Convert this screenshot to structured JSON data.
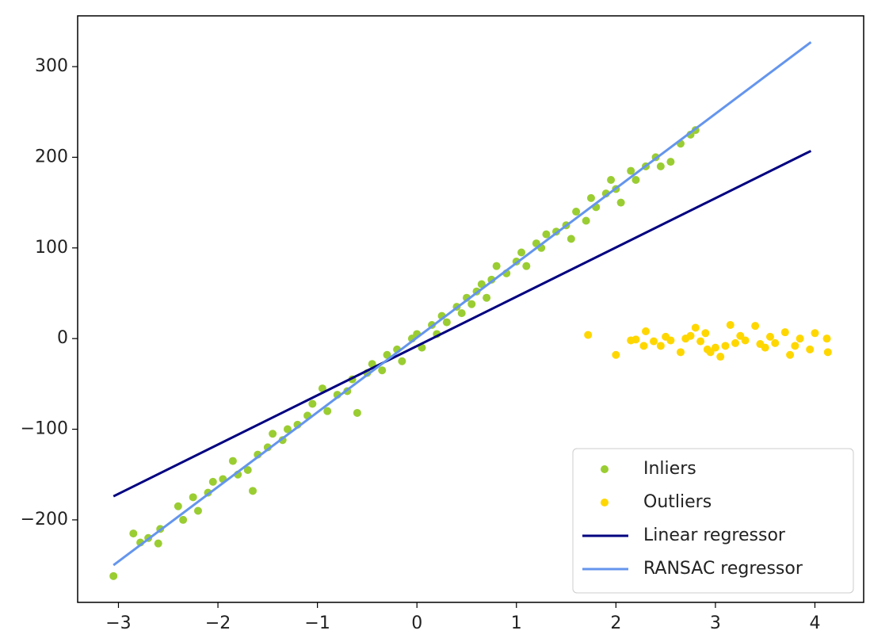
{
  "chart_data": {
    "type": "scatter",
    "xlim": [
      -3.41,
      4.49
    ],
    "ylim": [
      -291,
      356
    ],
    "xticks": [
      {
        "value": -3,
        "label": "−3"
      },
      {
        "value": -2,
        "label": "−2"
      },
      {
        "value": -1,
        "label": "−1"
      },
      0,
      1,
      2,
      3,
      4
    ],
    "yticks": [
      {
        "value": -200,
        "label": "−200"
      },
      {
        "value": -100,
        "label": "−100"
      },
      0,
      100,
      200,
      300
    ],
    "legend": "lower right",
    "series": [
      {
        "name": "Inliers",
        "type": "scatter",
        "color": "#9acd32",
        "x": [
          -3.05,
          -2.85,
          -2.78,
          -2.7,
          -2.6,
          -2.58,
          -2.4,
          -2.35,
          -2.25,
          -2.2,
          -2.1,
          -2.05,
          -1.95,
          -1.85,
          -1.8,
          -1.7,
          -1.65,
          -1.6,
          -1.5,
          -1.45,
          -1.35,
          -1.3,
          -1.2,
          -1.1,
          -1.05,
          -0.95,
          -0.9,
          -0.8,
          -0.7,
          -0.65,
          -0.6,
          -0.5,
          -0.45,
          -0.35,
          -0.3,
          -0.2,
          -0.15,
          -0.05,
          0.0,
          0.05,
          0.15,
          0.2,
          0.25,
          0.3,
          0.4,
          0.45,
          0.5,
          0.55,
          0.6,
          0.65,
          0.7,
          0.75,
          0.8,
          0.9,
          1.0,
          1.05,
          1.1,
          1.2,
          1.25,
          1.3,
          1.4,
          1.5,
          1.55,
          1.6,
          1.7,
          1.75,
          1.8,
          1.9,
          1.95,
          2.0,
          2.05,
          2.15,
          2.2,
          2.3,
          2.4,
          2.45,
          2.55,
          2.65,
          2.75,
          2.8
        ],
        "values": [
          -262,
          -215,
          -225,
          -220,
          -226,
          -210,
          -185,
          -200,
          -175,
          -190,
          -170,
          -158,
          -155,
          -135,
          -150,
          -145,
          -168,
          -128,
          -120,
          -105,
          -112,
          -100,
          -95,
          -85,
          -72,
          -55,
          -80,
          -62,
          -58,
          -45,
          -82,
          -38,
          -28,
          -35,
          -18,
          -12,
          -25,
          0,
          5,
          -10,
          15,
          5,
          25,
          18,
          35,
          28,
          45,
          38,
          52,
          60,
          45,
          65,
          80,
          72,
          85,
          95,
          80,
          105,
          100,
          115,
          118,
          125,
          110,
          140,
          130,
          155,
          145,
          160,
          175,
          165,
          150,
          185,
          175,
          190,
          200,
          190,
          195,
          215,
          225,
          230
        ]
      },
      {
        "name": "Outliers",
        "type": "scatter",
        "color": "#ffd700",
        "x": [
          1.72,
          2.0,
          2.15,
          2.2,
          2.28,
          2.3,
          2.38,
          2.45,
          2.5,
          2.55,
          2.65,
          2.7,
          2.75,
          2.8,
          2.85,
          2.9,
          2.92,
          2.95,
          3.0,
          3.05,
          3.1,
          3.15,
          3.2,
          3.25,
          3.3,
          3.4,
          3.45,
          3.5,
          3.55,
          3.6,
          3.7,
          3.75,
          3.8,
          3.85,
          3.95,
          4.0,
          4.12,
          4.13
        ],
        "values": [
          4,
          -18,
          -2,
          -1,
          -8,
          8,
          -3,
          -8,
          2,
          -2,
          -15,
          0,
          3,
          12,
          -3,
          6,
          -12,
          -15,
          -10,
          -20,
          -8,
          15,
          -5,
          3,
          -2,
          14,
          -6,
          -10,
          2,
          -5,
          7,
          -18,
          -8,
          0,
          -12,
          6,
          0,
          -15
        ]
      },
      {
        "name": "Linear regressor",
        "type": "line",
        "color": "#000080",
        "x": [
          -3.05,
          3.96
        ],
        "values": [
          -174,
          207
        ]
      },
      {
        "name": "RANSAC regressor",
        "type": "line",
        "color": "#6495ed",
        "x": [
          -3.05,
          3.96
        ],
        "values": [
          -250,
          327
        ]
      }
    ]
  }
}
